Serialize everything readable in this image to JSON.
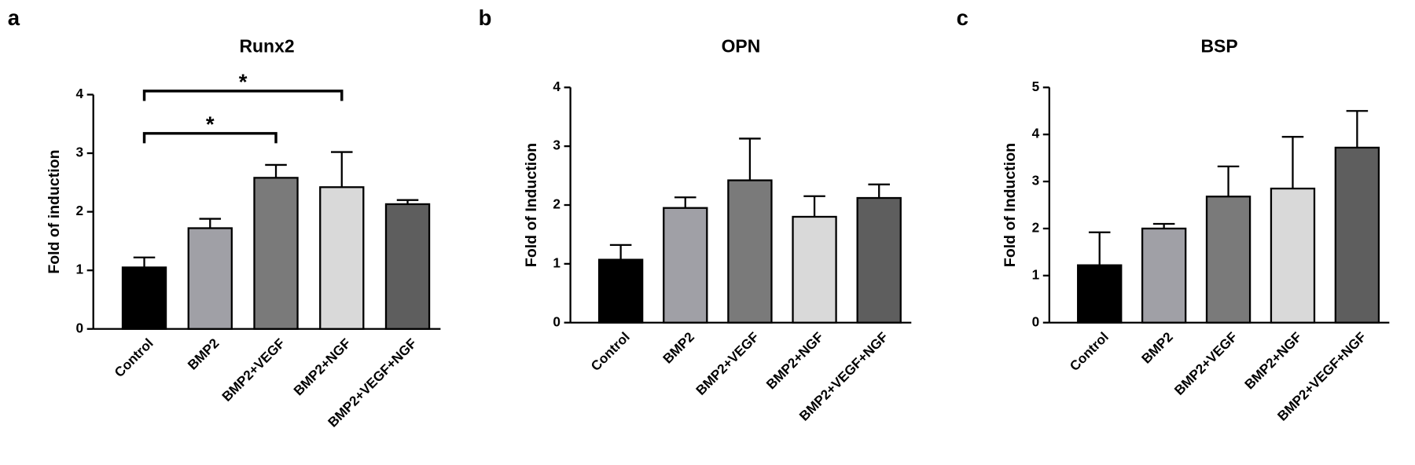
{
  "chart_data": [
    {
      "type": "bar",
      "panel": "a",
      "title": "Runx2",
      "y_label": "Fold of induction",
      "categories": [
        "Control",
        "BMP2",
        "BMP2+VEGF",
        "BMP2+NGF",
        "BMP2+VEGF+NGF"
      ],
      "values": [
        1.05,
        1.72,
        2.58,
        2.42,
        2.13
      ],
      "errors": [
        0.17,
        0.16,
        0.22,
        0.6,
        0.07
      ],
      "colors": [
        "#000000",
        "#a0a0a6",
        "#7a7a7a",
        "#d9d9d9",
        "#5e5e5e"
      ],
      "ylim": [
        0,
        4
      ],
      "yticks": [
        0,
        1,
        2,
        3,
        4
      ],
      "annotations": [
        {
          "text": "*",
          "from": "Control",
          "to": "BMP2+VEGF"
        },
        {
          "text": "*",
          "from": "Control",
          "to": "BMP2+NGF"
        }
      ]
    },
    {
      "type": "bar",
      "panel": "b",
      "title": "OPN",
      "y_label": "Fold of Induction",
      "categories": [
        "Control",
        "BMP2",
        "BMP2+VEGF",
        "BMP2+NGF",
        "BMP2+VEGF+NGF"
      ],
      "values": [
        1.07,
        1.95,
        2.42,
        1.8,
        2.12
      ],
      "errors": [
        0.25,
        0.18,
        0.71,
        0.35,
        0.23
      ],
      "colors": [
        "#000000",
        "#a0a0a6",
        "#7a7a7a",
        "#d9d9d9",
        "#5e5e5e"
      ],
      "ylim": [
        0,
        4
      ],
      "yticks": [
        0,
        1,
        2,
        3,
        4
      ]
    },
    {
      "type": "bar",
      "panel": "c",
      "title": "BSP",
      "y_label": "Fold of Induction",
      "categories": [
        "Control",
        "BMP2",
        "BMP2+VEGF",
        "BMP2+NGF",
        "BMP2+VEGF+NGF"
      ],
      "values": [
        1.22,
        2.0,
        2.68,
        2.85,
        3.72
      ],
      "errors": [
        0.7,
        0.1,
        0.64,
        1.1,
        0.78
      ],
      "colors": [
        "#000000",
        "#a0a0a6",
        "#7a7a7a",
        "#d9d9d9",
        "#5e5e5e"
      ],
      "ylim": [
        0,
        5
      ],
      "yticks": [
        0,
        1,
        2,
        3,
        4,
        5
      ]
    }
  ]
}
